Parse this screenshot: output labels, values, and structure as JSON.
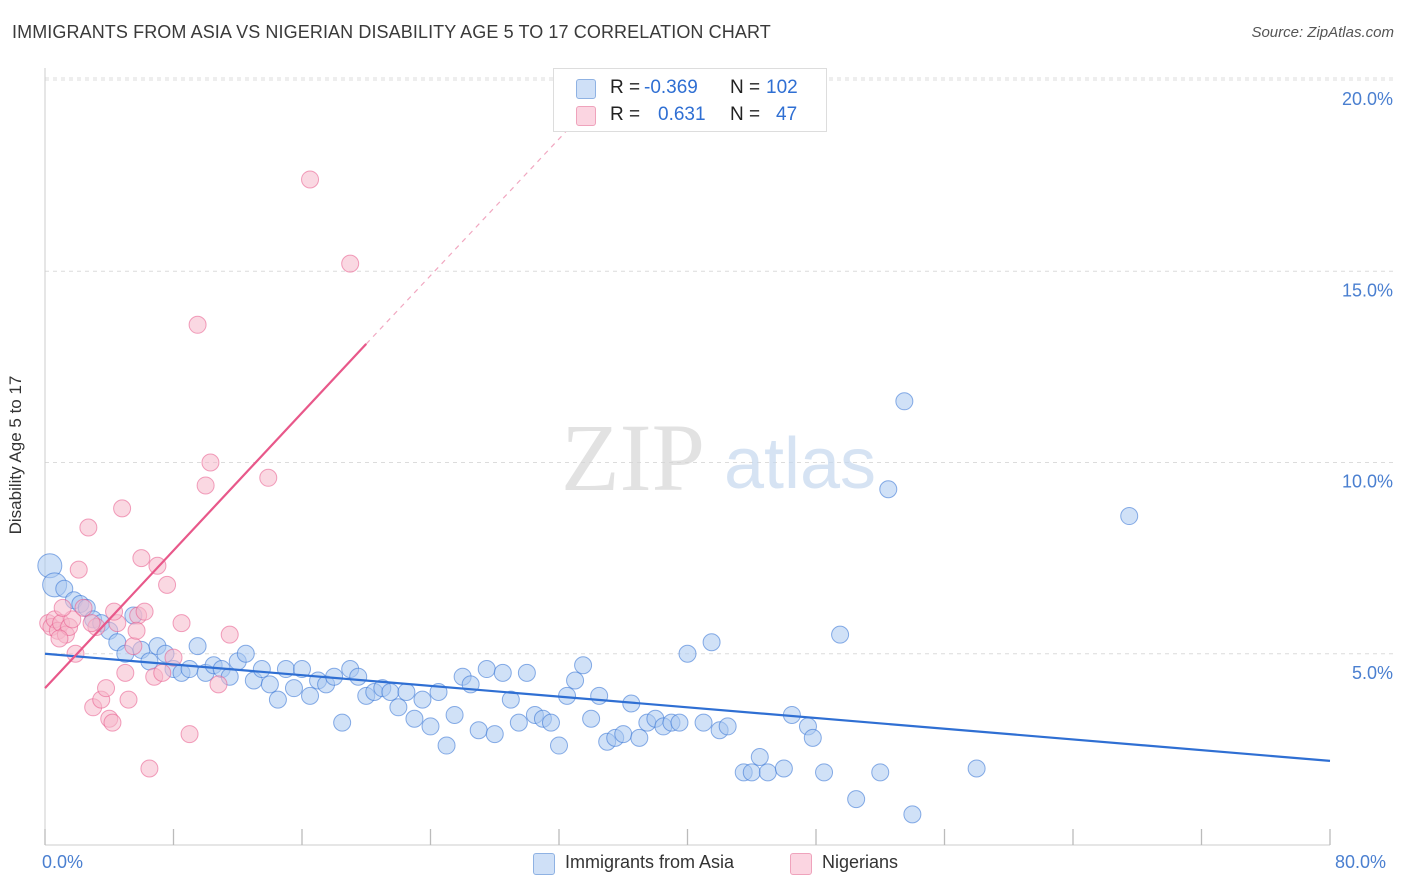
{
  "title": "IMMIGRANTS FROM ASIA VS NIGERIAN DISABILITY AGE 5 TO 17 CORRELATION CHART",
  "source": "Source: ZipAtlas.com",
  "watermark": {
    "zip": "ZIP",
    "atlas": "atlas"
  },
  "colors": {
    "blue": "#2f6fd3",
    "blue_fill": "#aac8f0",
    "pink": "#e8588a",
    "pink_fill": "#f6b8cb",
    "grid": "#dcdcdc",
    "tick_text": "#4a7fd0"
  },
  "legend": {
    "rows": [
      {
        "r_label": "R =",
        "r_value": "-0.369",
        "n_label": "N =",
        "n_value": "102",
        "color": "#aac8f0"
      },
      {
        "r_label": "R =",
        "r_value": "0.631",
        "n_label": "N =",
        "n_value": "47",
        "color": "#f6b8cb"
      }
    ]
  },
  "bottom_legend": [
    {
      "label": "Immigrants from Asia",
      "color": "#aac8f0"
    },
    {
      "label": "Nigerians",
      "color": "#f6b8cb"
    }
  ],
  "x_tick_left": "0.0%",
  "x_tick_right": "80.0%",
  "chart_data": {
    "type": "scatter",
    "title": "IMMIGRANTS FROM ASIA VS NIGERIAN DISABILITY AGE 5 TO 17 CORRELATION CHART",
    "xlabel": "",
    "ylabel": "Disability Age 5 to 17",
    "xlim": [
      0,
      80
    ],
    "ylim": [
      0,
      20
    ],
    "y_ticks": [
      {
        "value": 5,
        "label": "5.0%"
      },
      {
        "value": 10,
        "label": "10.0%"
      },
      {
        "value": 15,
        "label": "15.0%"
      },
      {
        "value": 20,
        "label": "20.0%"
      }
    ],
    "x_tick_labels": [
      "0.0%",
      "80.0%"
    ],
    "grid": true,
    "legend_position": "top-center",
    "series": [
      {
        "name": "Immigrants from Asia",
        "color": "#2f6fd3",
        "fill": "#aac8f0",
        "r": -0.369,
        "n": 102,
        "trend": {
          "x0": 0,
          "y0": 5.0,
          "x1": 80,
          "y1": 2.2
        },
        "points": [
          [
            0.3,
            7.3
          ],
          [
            0.6,
            6.8
          ],
          [
            1.2,
            6.7
          ],
          [
            1.8,
            6.4
          ],
          [
            2.2,
            6.3
          ],
          [
            2.6,
            6.2
          ],
          [
            3.0,
            5.9
          ],
          [
            3.5,
            5.8
          ],
          [
            4.0,
            5.6
          ],
          [
            4.5,
            5.3
          ],
          [
            5.0,
            5.0
          ],
          [
            5.5,
            6.0
          ],
          [
            6.0,
            5.1
          ],
          [
            6.5,
            4.8
          ],
          [
            7.0,
            5.2
          ],
          [
            7.5,
            5.0
          ],
          [
            8.0,
            4.6
          ],
          [
            8.5,
            4.5
          ],
          [
            9.0,
            4.6
          ],
          [
            9.5,
            5.2
          ],
          [
            10.0,
            4.5
          ],
          [
            10.5,
            4.7
          ],
          [
            11.0,
            4.6
          ],
          [
            11.5,
            4.4
          ],
          [
            12.0,
            4.8
          ],
          [
            12.5,
            5.0
          ],
          [
            13.0,
            4.3
          ],
          [
            13.5,
            4.6
          ],
          [
            14.0,
            4.2
          ],
          [
            14.5,
            3.8
          ],
          [
            15.0,
            4.6
          ],
          [
            15.5,
            4.1
          ],
          [
            16.0,
            4.6
          ],
          [
            16.5,
            3.9
          ],
          [
            17.0,
            4.3
          ],
          [
            17.5,
            4.2
          ],
          [
            18.0,
            4.4
          ],
          [
            18.5,
            3.2
          ],
          [
            19.0,
            4.6
          ],
          [
            19.5,
            4.4
          ],
          [
            20.0,
            3.9
          ],
          [
            20.5,
            4.0
          ],
          [
            21.0,
            4.1
          ],
          [
            21.5,
            4.0
          ],
          [
            22.0,
            3.6
          ],
          [
            22.5,
            4.0
          ],
          [
            23.0,
            3.3
          ],
          [
            23.5,
            3.8
          ],
          [
            24.0,
            3.1
          ],
          [
            24.5,
            4.0
          ],
          [
            25.0,
            2.6
          ],
          [
            25.5,
            3.4
          ],
          [
            26.0,
            4.4
          ],
          [
            26.5,
            4.2
          ],
          [
            27.0,
            3.0
          ],
          [
            27.5,
            4.6
          ],
          [
            28.0,
            2.9
          ],
          [
            28.5,
            4.5
          ],
          [
            29.0,
            3.8
          ],
          [
            29.5,
            3.2
          ],
          [
            30.0,
            4.5
          ],
          [
            30.5,
            3.4
          ],
          [
            31.0,
            3.3
          ],
          [
            31.5,
            3.2
          ],
          [
            32.0,
            2.6
          ],
          [
            32.5,
            3.9
          ],
          [
            33.0,
            4.3
          ],
          [
            33.5,
            4.7
          ],
          [
            34.0,
            3.3
          ],
          [
            34.5,
            3.9
          ],
          [
            35.0,
            2.7
          ],
          [
            35.5,
            2.8
          ],
          [
            36.0,
            2.9
          ],
          [
            36.5,
            3.7
          ],
          [
            37.0,
            2.8
          ],
          [
            37.5,
            3.2
          ],
          [
            38.0,
            3.3
          ],
          [
            38.5,
            3.1
          ],
          [
            39.0,
            3.2
          ],
          [
            39.5,
            3.2
          ],
          [
            40.0,
            5.0
          ],
          [
            41.0,
            3.2
          ],
          [
            41.5,
            5.3
          ],
          [
            42.0,
            3.0
          ],
          [
            42.5,
            3.1
          ],
          [
            43.5,
            1.9
          ],
          [
            44.0,
            1.9
          ],
          [
            44.5,
            2.3
          ],
          [
            45.0,
            1.9
          ],
          [
            46.0,
            2.0
          ],
          [
            46.5,
            3.4
          ],
          [
            47.5,
            3.1
          ],
          [
            47.8,
            2.8
          ],
          [
            48.5,
            1.9
          ],
          [
            49.5,
            5.5
          ],
          [
            50.5,
            1.2
          ],
          [
            52.0,
            1.9
          ],
          [
            52.5,
            9.3
          ],
          [
            53.5,
            11.6
          ],
          [
            54.0,
            0.8
          ],
          [
            58.0,
            2.0
          ],
          [
            67.5,
            8.6
          ]
        ]
      },
      {
        "name": "Nigerians",
        "color": "#e8588a",
        "fill": "#f6b8cb",
        "r": 0.631,
        "n": 47,
        "trend": {
          "x0": 0,
          "y0": 4.1,
          "x1": 20.0,
          "y1": 13.1,
          "dash_x1": 35,
          "dash_y1": 19.8
        },
        "points": [
          [
            0.2,
            5.8
          ],
          [
            0.4,
            5.7
          ],
          [
            0.6,
            5.9
          ],
          [
            0.8,
            5.6
          ],
          [
            1.0,
            5.8
          ],
          [
            1.3,
            5.5
          ],
          [
            1.5,
            5.7
          ],
          [
            1.7,
            5.9
          ],
          [
            1.9,
            5.0
          ],
          [
            2.1,
            7.2
          ],
          [
            2.4,
            6.2
          ],
          [
            2.7,
            8.3
          ],
          [
            3.0,
            3.6
          ],
          [
            3.2,
            5.7
          ],
          [
            3.5,
            3.8
          ],
          [
            3.8,
            4.1
          ],
          [
            4.0,
            3.3
          ],
          [
            4.2,
            3.2
          ],
          [
            4.5,
            5.8
          ],
          [
            4.8,
            8.8
          ],
          [
            5.0,
            4.5
          ],
          [
            5.2,
            3.8
          ],
          [
            5.5,
            5.2
          ],
          [
            5.8,
            6.0
          ],
          [
            6.0,
            7.5
          ],
          [
            6.2,
            6.1
          ],
          [
            6.5,
            2.0
          ],
          [
            6.8,
            4.4
          ],
          [
            7.0,
            7.3
          ],
          [
            7.3,
            4.5
          ],
          [
            7.6,
            6.8
          ],
          [
            8.0,
            4.9
          ],
          [
            8.5,
            5.8
          ],
          [
            9.0,
            2.9
          ],
          [
            9.5,
            13.6
          ],
          [
            10.0,
            9.4
          ],
          [
            10.3,
            10.0
          ],
          [
            10.8,
            4.2
          ],
          [
            11.5,
            5.5
          ],
          [
            13.9,
            9.6
          ],
          [
            16.5,
            17.4
          ],
          [
            19.0,
            15.2
          ],
          [
            2.9,
            5.8
          ],
          [
            1.1,
            6.2
          ],
          [
            0.9,
            5.4
          ],
          [
            4.3,
            6.1
          ],
          [
            5.7,
            5.6
          ]
        ]
      }
    ]
  }
}
